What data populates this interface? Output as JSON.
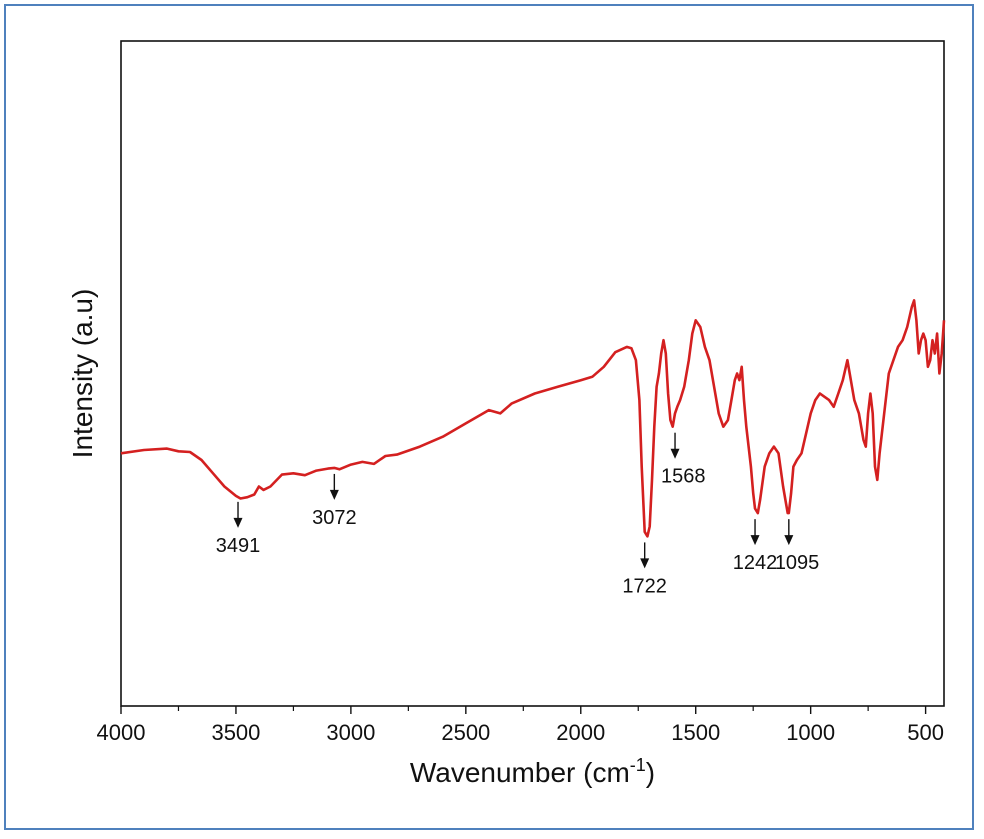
{
  "chart_data": {
    "type": "line",
    "title": "",
    "xlabel": "Wavenumber (cm",
    "xlabel_sup": "-1",
    "xlabel_close": ")",
    "ylabel": "Intensity (a.u)",
    "xlim": [
      4000,
      420
    ],
    "x_reversed": true,
    "ylim": [
      0,
      1
    ],
    "y_ticks_shown": false,
    "grid": false,
    "legend": "none",
    "x_ticks": [
      "4000",
      "3500",
      "3000",
      "2500",
      "2000",
      "1500",
      "1000",
      "500"
    ],
    "x_tick_values": [
      4000,
      3500,
      3000,
      2500,
      2000,
      1500,
      1000,
      500
    ],
    "series": [
      {
        "color": "#d42020",
        "x": [
          4000,
          3900,
          3800,
          3750,
          3700,
          3650,
          3600,
          3550,
          3500,
          3480,
          3450,
          3420,
          3400,
          3380,
          3350,
          3300,
          3250,
          3200,
          3150,
          3100,
          3072,
          3050,
          3000,
          2950,
          2900,
          2850,
          2800,
          2750,
          2700,
          2600,
          2500,
          2400,
          2350,
          2300,
          2200,
          2100,
          2000,
          1950,
          1900,
          1850,
          1800,
          1780,
          1760,
          1745,
          1735,
          1722,
          1710,
          1700,
          1690,
          1680,
          1670,
          1660,
          1650,
          1640,
          1630,
          1620,
          1610,
          1600,
          1590,
          1580,
          1568,
          1550,
          1530,
          1515,
          1500,
          1480,
          1460,
          1440,
          1420,
          1400,
          1380,
          1360,
          1345,
          1330,
          1320,
          1310,
          1300,
          1290,
          1280,
          1270,
          1260,
          1250,
          1242,
          1230,
          1220,
          1200,
          1180,
          1160,
          1140,
          1120,
          1110,
          1100,
          1095,
          1085,
          1075,
          1060,
          1040,
          1020,
          1000,
          980,
          960,
          940,
          920,
          900,
          880,
          860,
          840,
          830,
          820,
          810,
          800,
          790,
          780,
          770,
          760,
          750,
          740,
          730,
          720,
          710,
          700,
          680,
          660,
          640,
          620,
          600,
          580,
          560,
          550,
          540,
          530,
          520,
          510,
          500,
          490,
          480,
          470,
          460,
          450,
          440,
          430,
          420
        ],
        "y": [
          0.38,
          0.385,
          0.387,
          0.383,
          0.382,
          0.37,
          0.35,
          0.33,
          0.316,
          0.312,
          0.314,
          0.318,
          0.33,
          0.325,
          0.33,
          0.348,
          0.35,
          0.347,
          0.354,
          0.357,
          0.358,
          0.356,
          0.363,
          0.367,
          0.364,
          0.376,
          0.378,
          0.384,
          0.39,
          0.405,
          0.425,
          0.445,
          0.44,
          0.455,
          0.47,
          0.48,
          0.49,
          0.495,
          0.51,
          0.532,
          0.54,
          0.538,
          0.52,
          0.46,
          0.36,
          0.262,
          0.255,
          0.27,
          0.34,
          0.42,
          0.48,
          0.5,
          0.53,
          0.55,
          0.53,
          0.47,
          0.43,
          0.42,
          0.44,
          0.45,
          0.46,
          0.48,
          0.52,
          0.56,
          0.58,
          0.57,
          0.54,
          0.52,
          0.48,
          0.44,
          0.42,
          0.43,
          0.46,
          0.49,
          0.5,
          0.49,
          0.51,
          0.46,
          0.42,
          0.39,
          0.36,
          0.32,
          0.297,
          0.29,
          0.31,
          0.36,
          0.38,
          0.39,
          0.38,
          0.33,
          0.31,
          0.29,
          0.29,
          0.32,
          0.36,
          0.37,
          0.38,
          0.41,
          0.44,
          0.46,
          0.47,
          0.465,
          0.46,
          0.45,
          0.47,
          0.49,
          0.52,
          0.5,
          0.48,
          0.46,
          0.45,
          0.44,
          0.42,
          0.4,
          0.39,
          0.44,
          0.47,
          0.44,
          0.36,
          0.34,
          0.38,
          0.44,
          0.5,
          0.52,
          0.54,
          0.55,
          0.57,
          0.6,
          0.61,
          0.58,
          0.53,
          0.55,
          0.56,
          0.55,
          0.51,
          0.52,
          0.55,
          0.53,
          0.56,
          0.5,
          0.53,
          0.58
        ]
      }
    ],
    "annotations": [
      {
        "label": "3491",
        "x": 3491,
        "y": 0.316,
        "dir": "down",
        "label_pos": "below"
      },
      {
        "label": "3072",
        "x": 3072,
        "y": 0.358,
        "dir": "down",
        "label_pos": "below"
      },
      {
        "label": "1722",
        "x": 1722,
        "y": 0.255,
        "dir": "down",
        "label_pos": "below"
      },
      {
        "label": "1568",
        "x": 1590,
        "y": 0.42,
        "dir": "down",
        "label_pos": "below-right"
      },
      {
        "label": "1242",
        "x": 1242,
        "y": 0.29,
        "dir": "down",
        "label_pos": "below"
      },
      {
        "label": "1095",
        "x": 1095,
        "y": 0.29,
        "dir": "down",
        "label_pos": "below-right"
      }
    ]
  }
}
